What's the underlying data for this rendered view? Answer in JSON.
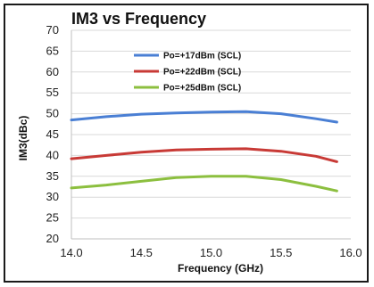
{
  "chart_data": {
    "type": "line",
    "title": "IM3 vs Frequency",
    "xlabel": "Frequency (GHz)",
    "ylabel": "IM3(dBc)",
    "xlim": [
      14.0,
      16.0
    ],
    "ylim": [
      20,
      70
    ],
    "xticks": [
      14.0,
      14.5,
      15.0,
      15.5,
      16.0
    ],
    "xtick_labels": [
      "14.0",
      "14.5",
      "15.0",
      "15.5",
      "16.0"
    ],
    "yticks": [
      20,
      25,
      30,
      35,
      40,
      45,
      50,
      55,
      60,
      65,
      70
    ],
    "ytick_labels": [
      "20",
      "25",
      "30",
      "35",
      "40",
      "45",
      "50",
      "55",
      "60",
      "65",
      "70"
    ],
    "grid": "horizontal",
    "legend_position": "top-center",
    "series": [
      {
        "name": "Po=+17dBm (SCL)",
        "color": "#4a7fd4",
        "x": [
          14.0,
          14.25,
          14.5,
          14.75,
          15.0,
          15.25,
          15.5,
          15.75,
          15.9
        ],
        "y": [
          48.5,
          49.3,
          49.9,
          50.2,
          50.4,
          50.5,
          50.0,
          48.8,
          48.0
        ]
      },
      {
        "name": "Po=+22dBm (SCL)",
        "color": "#c83a36",
        "x": [
          14.0,
          14.25,
          14.5,
          14.75,
          15.0,
          15.25,
          15.5,
          15.75,
          15.9
        ],
        "y": [
          39.2,
          40.0,
          40.8,
          41.3,
          41.5,
          41.6,
          41.0,
          39.8,
          38.5
        ]
      },
      {
        "name": "Po=+25dBm (SCL)",
        "color": "#8cbf3f",
        "x": [
          14.0,
          14.25,
          14.5,
          14.75,
          15.0,
          15.25,
          15.5,
          15.75,
          15.9
        ],
        "y": [
          32.2,
          32.9,
          33.8,
          34.7,
          35.0,
          35.0,
          34.2,
          32.6,
          31.5
        ]
      }
    ]
  }
}
